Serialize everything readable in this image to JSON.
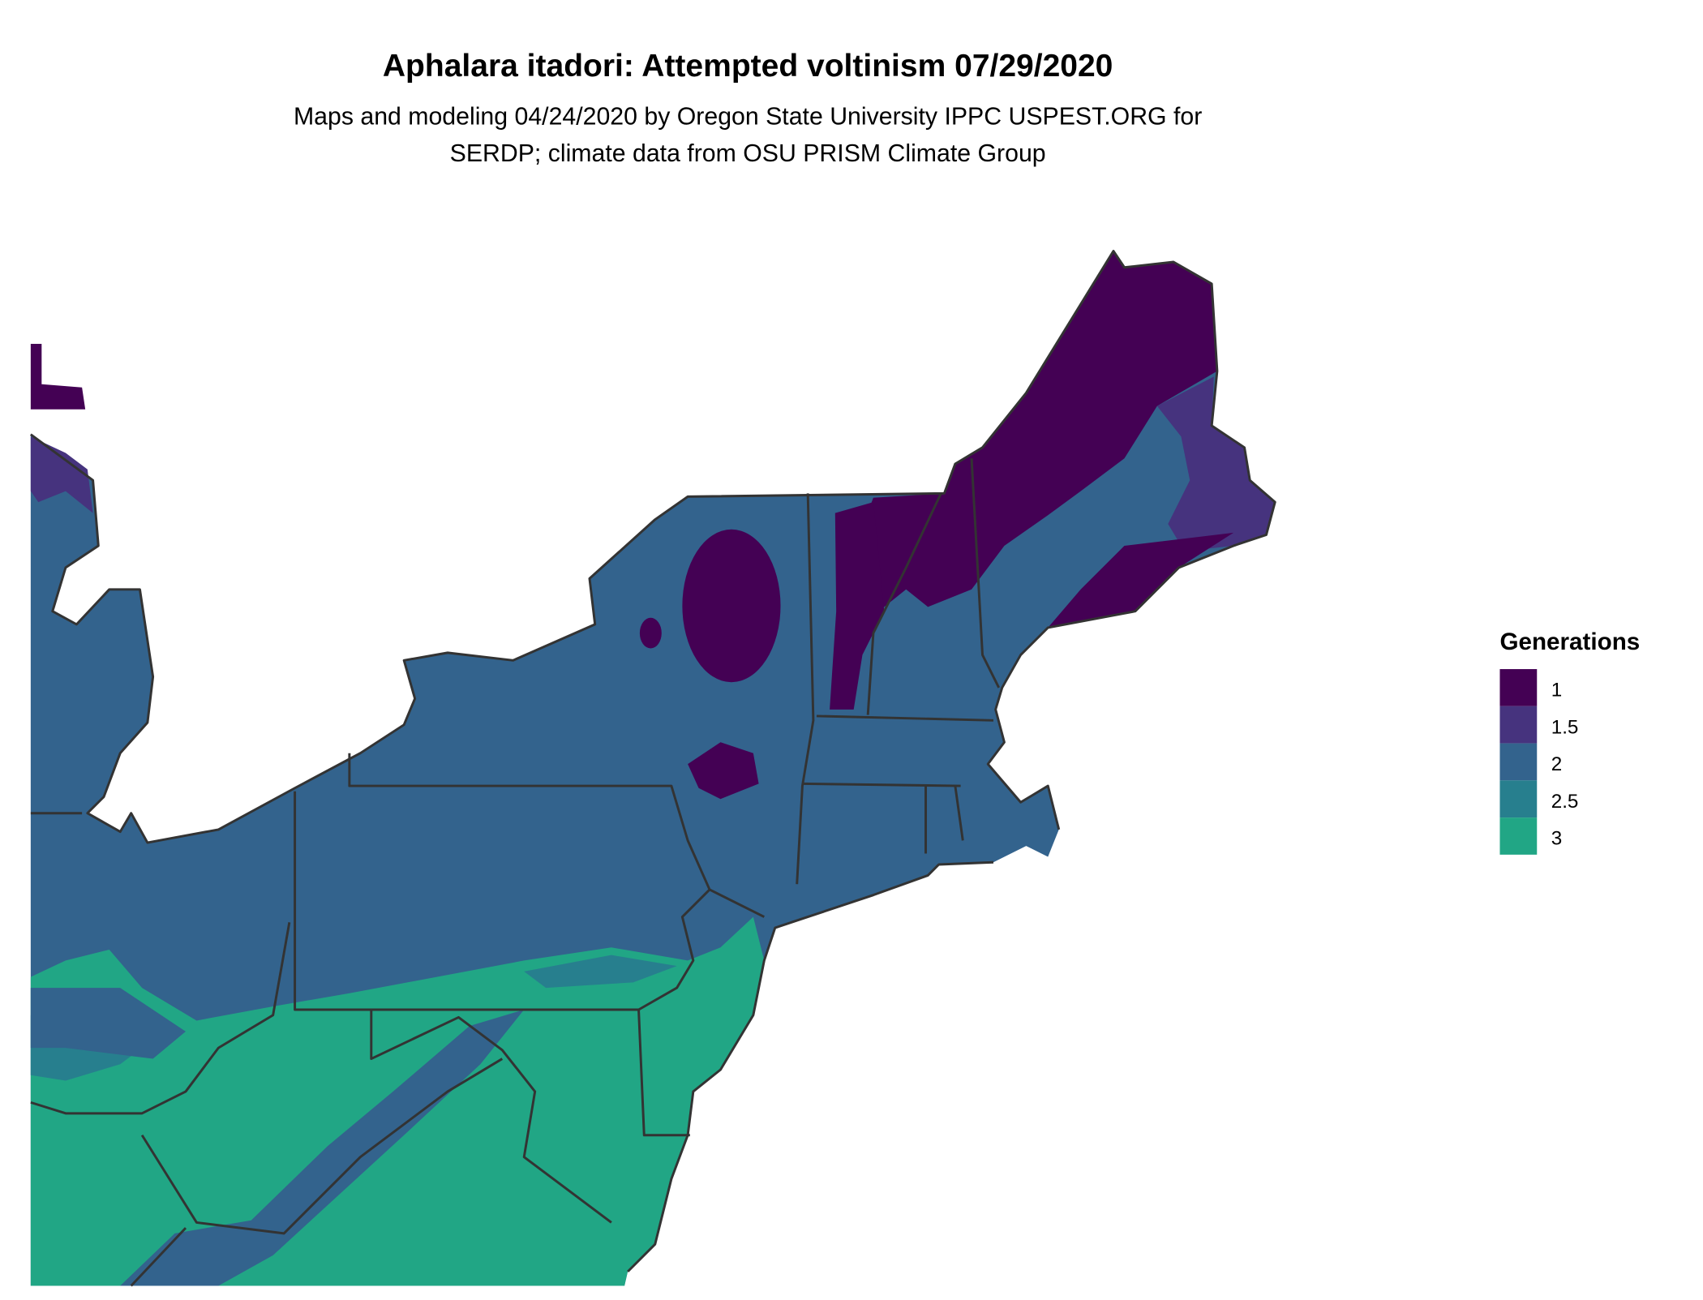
{
  "title": "Aphalara itadori: Attempted voltinism 07/29/2020",
  "subtitle_line1": "Maps and modeling 04/24/2020 by Oregon State University IPPC USPEST.ORG for",
  "subtitle_line2": "SERDP; climate data from OSU PRISM Climate Group",
  "legend": {
    "title": "Generations",
    "placement": "right",
    "items": [
      {
        "label": "1",
        "color": "#440154"
      },
      {
        "label": "1.5",
        "color": "#46337E"
      },
      {
        "label": "2",
        "color": "#33638D"
      },
      {
        "label": "2.5",
        "color": "#277F8E"
      },
      {
        "label": "3",
        "color": "#21A685"
      }
    ]
  },
  "colors": {
    "border": "#333333",
    "background": "#FFFFFF"
  }
}
